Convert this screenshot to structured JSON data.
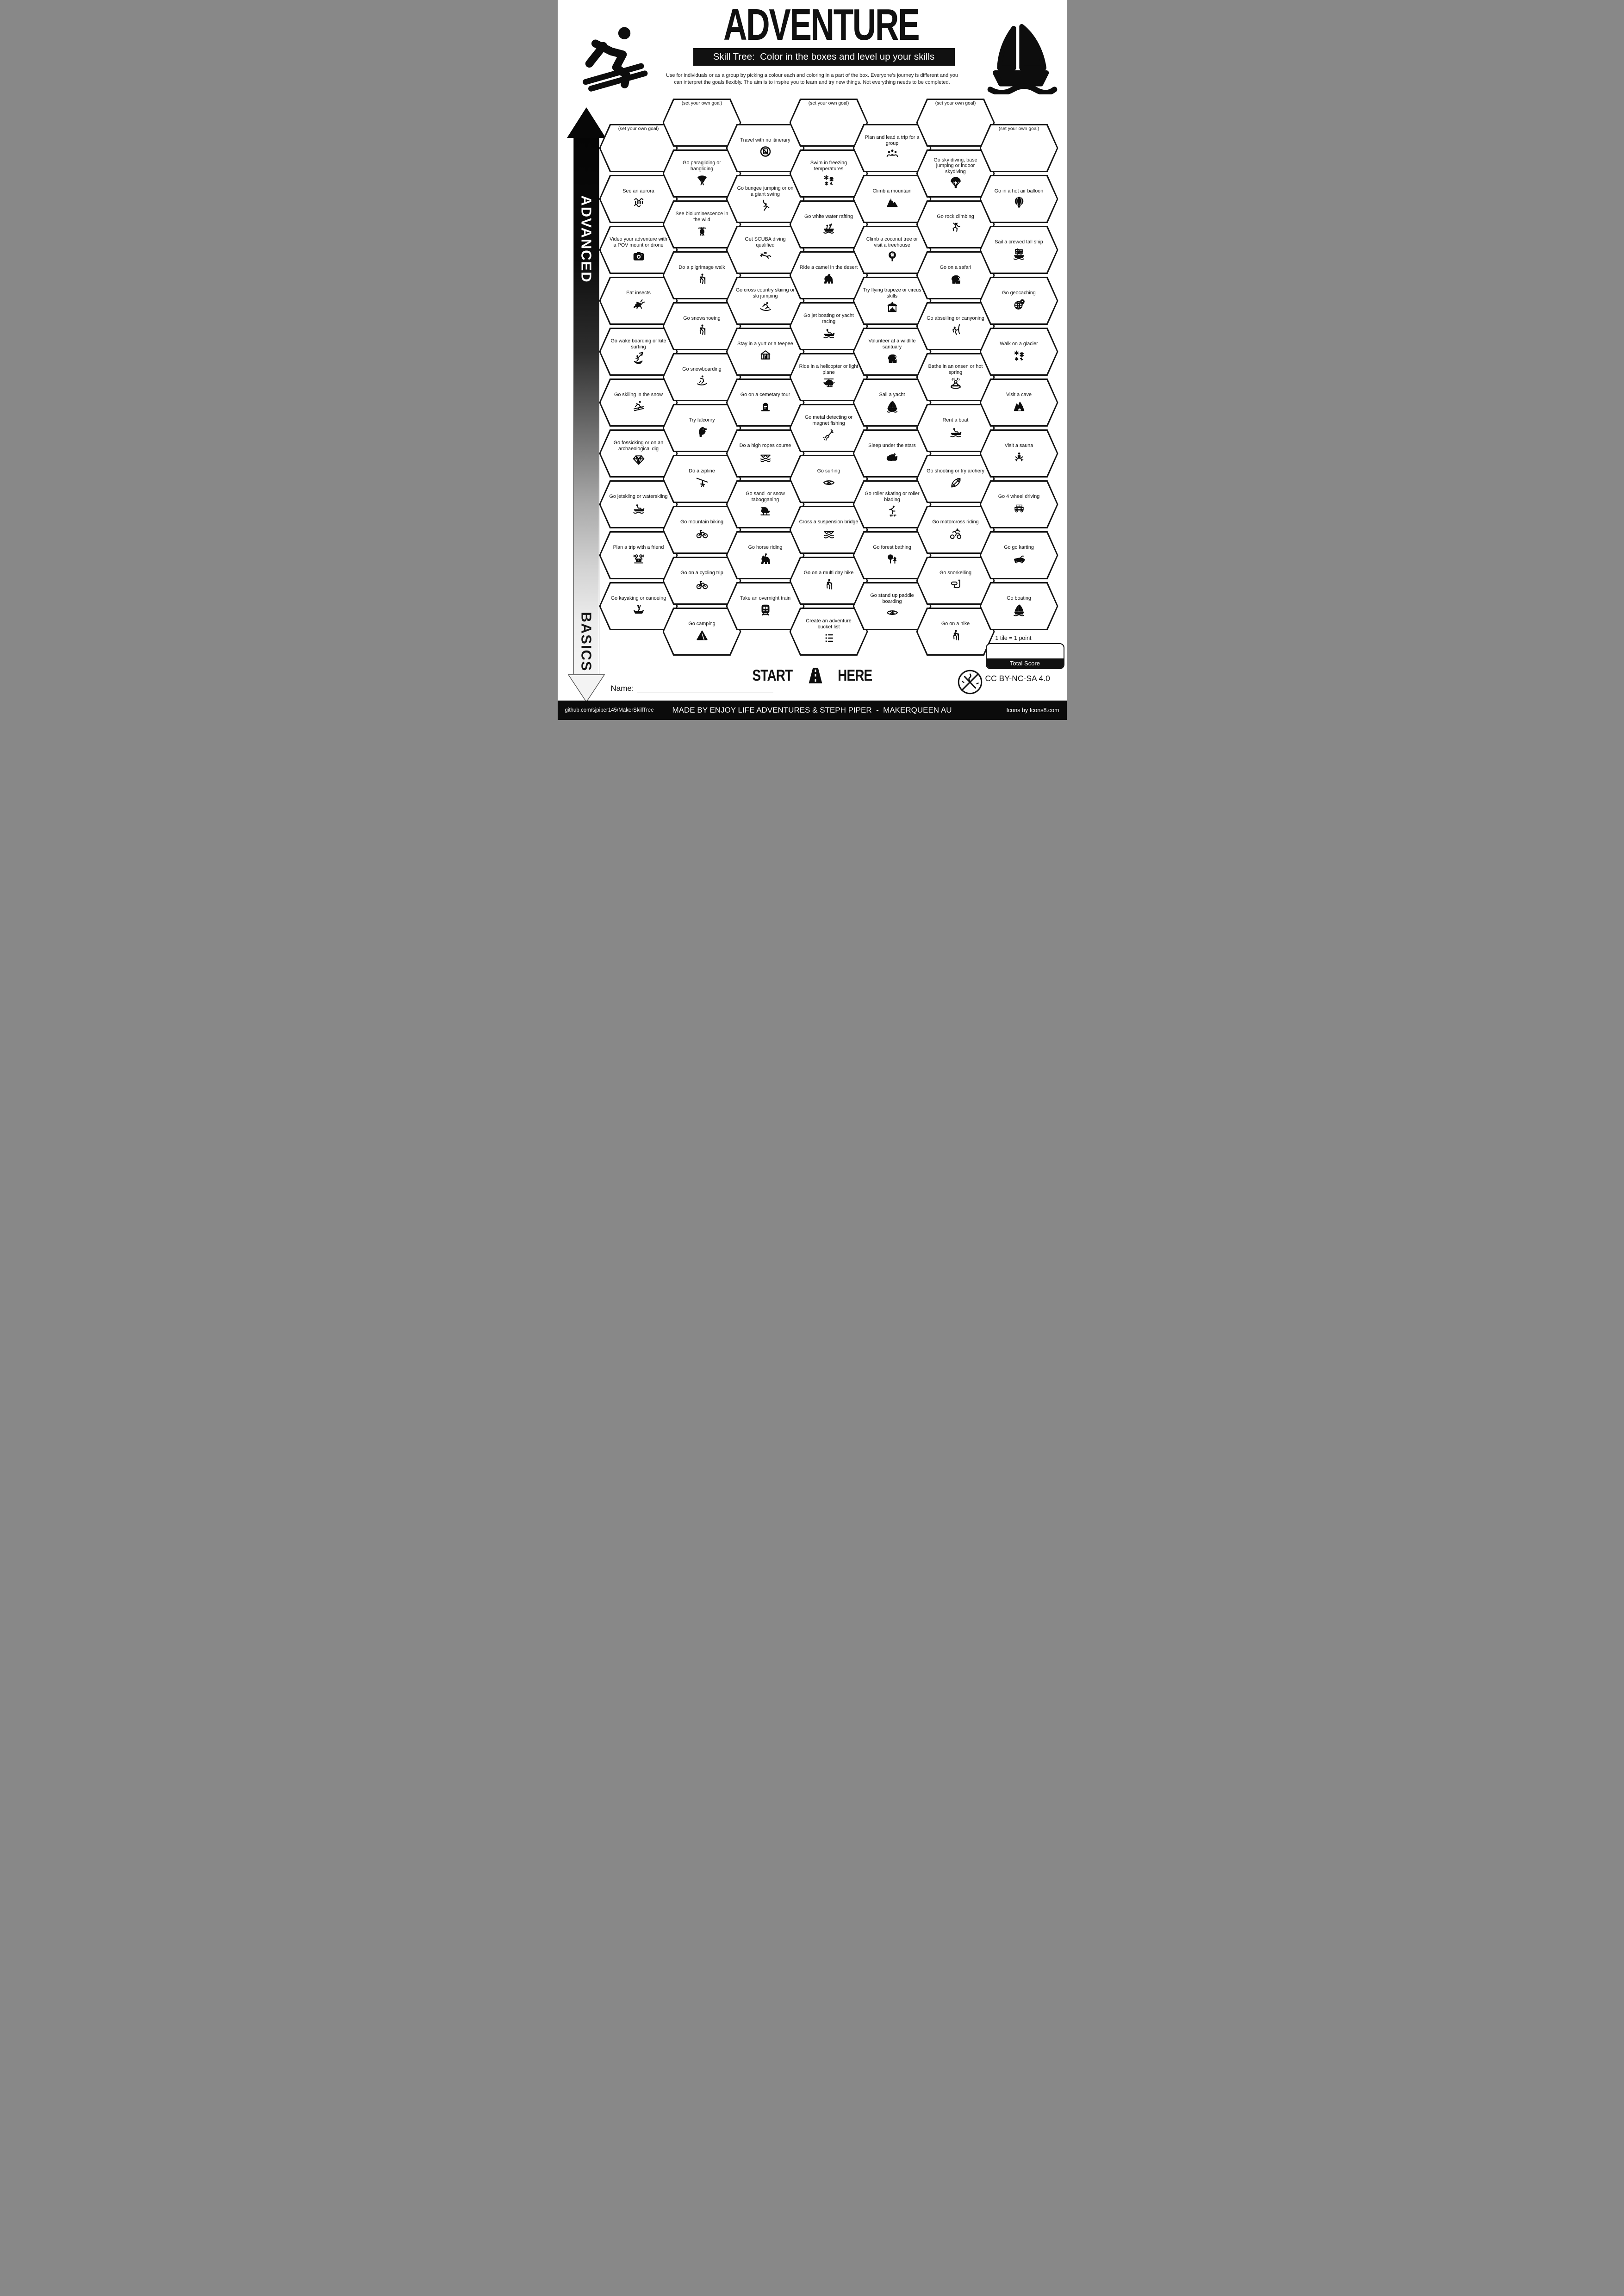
{
  "header": {
    "title": "ADVENTURE",
    "subtitle": "Skill Tree:  Color in the boxes and level up your skills",
    "description": "Use for individuals or as a group by picking a colour each and coloring in a part of the box.  Everyone's journey is different and you can interpret the goals flexibly.  The aim is to inspire you to learn and try new things. Not everything needs to be completed."
  },
  "axis": {
    "top": "ADVANCED",
    "bottom": "BASICS"
  },
  "start_here": {
    "start": "START",
    "here": "HERE"
  },
  "name_label": "Name:",
  "score": {
    "note": "1 tile = 1 point",
    "label": "Total Score"
  },
  "license": "CC BY-NC-SA 4.0",
  "footer": {
    "left": "github.com/sjpiper145/MakerSkillTree",
    "center": "MADE BY ENJOY LIFE ADVENTURES & STEPH PIPER  -  MAKERQUEEN AU",
    "right": "Icons by Icons8.com"
  },
  "colors": {
    "ink": "#111111",
    "paper": "#ffffff"
  },
  "grid": {
    "columns": [
      {
        "cells": [
          {
            "label": "(set your own goal)",
            "icon": "",
            "goal": true
          },
          {
            "label": "See an aurora",
            "icon": "aurora"
          },
          {
            "label": "Video your adventure with a POV mount or drone",
            "icon": "camera"
          },
          {
            "label": "Eat insects",
            "icon": "grasshopper"
          },
          {
            "label": "Go wake boarding or kite surfing",
            "icon": "kitesurf"
          },
          {
            "label": "Go skiiing in the snow",
            "icon": "skier"
          },
          {
            "label": "Go fossicking or on an archaeological dig",
            "icon": "gem"
          },
          {
            "label": "Go jetskiing or waterskiing",
            "icon": "motorboat"
          },
          {
            "label": "Plan a trip with a friend",
            "icon": "friends"
          },
          {
            "label": "Go kayaking or canoeing",
            "icon": "canoe"
          }
        ]
      },
      {
        "cells": [
          {
            "label": "(set your own goal)",
            "icon": "",
            "goal": true
          },
          {
            "label": "Go paragliding or hangliding",
            "icon": "paraglider"
          },
          {
            "label": "See bioluminescence in the wild",
            "icon": "firefly"
          },
          {
            "label": "Do a pilgrimage walk",
            "icon": "hiker"
          },
          {
            "label": "Go snowshoeing",
            "icon": "hiker"
          },
          {
            "label": "Go snowboarding",
            "icon": "snowboarder"
          },
          {
            "label": "Try falconry",
            "icon": "falcon"
          },
          {
            "label": "Do a zipline",
            "icon": "zipline"
          },
          {
            "label": "Go mountain biking",
            "icon": "bike"
          },
          {
            "label": "Go on a cycling trip",
            "icon": "bike"
          },
          {
            "label": "Go camping",
            "icon": "tent"
          }
        ]
      },
      {
        "cells": [
          {
            "label": "Travel with no itinerary",
            "icon": "no-itinerary"
          },
          {
            "label": "Go bungee jumping or on a giant swing",
            "icon": "bungee"
          },
          {
            "label": "Get SCUBA diving qualified",
            "icon": "scuba"
          },
          {
            "label": "Go cross country skiiing or ski jumping",
            "icon": "ski-jump"
          },
          {
            "label": "Stay in a yurt or a teepee",
            "icon": "yurt"
          },
          {
            "label": "Go on a cemetary tour",
            "icon": "tombstone"
          },
          {
            "label": "Do a high ropes course",
            "icon": "ropes"
          },
          {
            "label": "Go sand  or snow tabogganing",
            "icon": "sled"
          },
          {
            "label": "Go horse riding",
            "icon": "horse"
          },
          {
            "label": "Take an overnight train",
            "icon": "train"
          }
        ]
      },
      {
        "cells": [
          {
            "label": "(set your own goal)",
            "icon": "",
            "goal": true
          },
          {
            "label": "Swim in freezing temperatures",
            "icon": "snowflakes"
          },
          {
            "label": "Go white water rafting",
            "icon": "raft"
          },
          {
            "label": "Ride a camel in the desert",
            "icon": "camel"
          },
          {
            "label": "Go jet boating or yacht racing",
            "icon": "motorboat"
          },
          {
            "label": "Ride in a helicopter or light plane",
            "icon": "helicopter"
          },
          {
            "label": "Go metal detecting or magnet fishing",
            "icon": "detector"
          },
          {
            "label": "Go surfing",
            "icon": "surfboard"
          },
          {
            "label": "Cross a suspension bridge",
            "icon": "ropes"
          },
          {
            "label": "Go on a multi day hike",
            "icon": "hiker"
          },
          {
            "label": "Create an adventure bucket list",
            "icon": "checklist"
          }
        ]
      },
      {
        "cells": [
          {
            "label": "Plan and lead a trip for a group",
            "icon": "group"
          },
          {
            "label": "Climb a mountain",
            "icon": "mountain"
          },
          {
            "label": "Climb a coconut tree or visit a treehouse",
            "icon": "treehouse"
          },
          {
            "label": "Try flying trapeze or circus skills",
            "icon": "circus"
          },
          {
            "label": "Volunteer at a wildlife santuary",
            "icon": "elephant"
          },
          {
            "label": "Sail a yacht",
            "icon": "sailboat"
          },
          {
            "label": "Sleep under the stars",
            "icon": "nightsky"
          },
          {
            "label": "Go roller skating or roller blading",
            "icon": "skater"
          },
          {
            "label": "Go forest bathing",
            "icon": "forest"
          },
          {
            "label": "Go stand up paddle boarding",
            "icon": "surfboard"
          }
        ]
      },
      {
        "cells": [
          {
            "label": "(set your own goal)",
            "icon": "",
            "goal": true
          },
          {
            "label": "Go sky diving, base jumping or indoor skydiving",
            "icon": "parachute"
          },
          {
            "label": "Go rock climbing",
            "icon": "climber"
          },
          {
            "label": "Go on a safari",
            "icon": "elephant"
          },
          {
            "label": "Go abseiling or canyoning",
            "icon": "abseiler"
          },
          {
            "label": "Bathe in an onsen or hot spring",
            "icon": "onsen"
          },
          {
            "label": "Rent a boat",
            "icon": "motorboat"
          },
          {
            "label": "Go shooting or try archery",
            "icon": "bow"
          },
          {
            "label": "Go motorcross riding",
            "icon": "motocross"
          },
          {
            "label": "Go snorkelling",
            "icon": "snorkel"
          },
          {
            "label": "Go on a hike",
            "icon": "hiker"
          }
        ]
      },
      {
        "cells": [
          {
            "label": "(set your own goal)",
            "icon": "",
            "goal": true
          },
          {
            "label": "Go in a hot air balloon",
            "icon": "balloon"
          },
          {
            "label": "Sail a crewed tall ship",
            "icon": "tallship"
          },
          {
            "label": "Go geocaching",
            "icon": "geocache"
          },
          {
            "label": "Walk on a glacier",
            "icon": "snowflakes"
          },
          {
            "label": "Visit a cave",
            "icon": "cave"
          },
          {
            "label": "Visit a sauna",
            "icon": "sauna"
          },
          {
            "label": "Go 4 wheel driving",
            "icon": "jeep"
          },
          {
            "label": "Go go karting",
            "icon": "gokart"
          },
          {
            "label": "Go boating",
            "icon": "sailboat"
          }
        ]
      }
    ]
  }
}
